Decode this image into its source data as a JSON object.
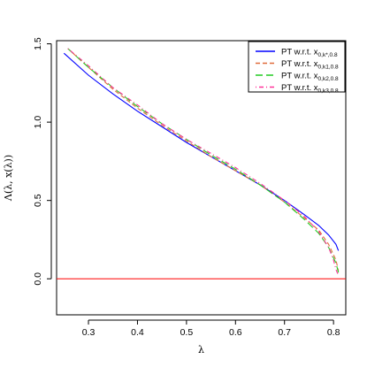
{
  "chart_data": {
    "type": "line",
    "title": "",
    "xlabel": "λ",
    "ylabel": "Λ(λ, x(λ))",
    "xlim": [
      0.235,
      0.825
    ],
    "ylim": [
      -0.23,
      1.52
    ],
    "x_ticks": [
      0.3,
      0.4,
      0.5,
      0.6,
      0.7,
      0.8
    ],
    "x_tick_labels": [
      "0.3",
      "0.4",
      "0.5",
      "0.6",
      "0.7",
      "0.8"
    ],
    "y_ticks": [
      0.0,
      0.5,
      1.0,
      1.5
    ],
    "y_tick_labels": [
      "0.0",
      "0.5",
      "1.0",
      "1.5"
    ],
    "grid": false,
    "legend_position": "top-right",
    "hline": {
      "y": 0.0,
      "color": "#ff0000"
    },
    "series": [
      {
        "name": "PT w.r.t. x",
        "subscript": "0,k*,0.8",
        "color": "#0000ff",
        "dash": "solid",
        "x": [
          0.25,
          0.3,
          0.35,
          0.4,
          0.45,
          0.5,
          0.55,
          0.6,
          0.65,
          0.7,
          0.74,
          0.77,
          0.79,
          0.805,
          0.81
        ],
        "y": [
          1.44,
          1.3,
          1.18,
          1.07,
          0.97,
          0.87,
          0.78,
          0.69,
          0.6,
          0.5,
          0.41,
          0.34,
          0.28,
          0.22,
          0.18
        ]
      },
      {
        "name": "PT w.r.t. x",
        "subscript": "0,k1,0.8",
        "color": "#e06c3c",
        "dash": "dashed",
        "x": [
          0.258,
          0.3,
          0.35,
          0.4,
          0.45,
          0.5,
          0.55,
          0.6,
          0.65,
          0.7,
          0.74,
          0.77,
          0.79,
          0.805,
          0.81
        ],
        "y": [
          1.47,
          1.35,
          1.21,
          1.09,
          0.98,
          0.88,
          0.78,
          0.69,
          0.6,
          0.49,
          0.39,
          0.31,
          0.22,
          0.12,
          0.05
        ]
      },
      {
        "name": "PT w.r.t. x",
        "subscript": "0,k2,0.8",
        "color": "#22cc22",
        "dash": "longdash",
        "x": [
          0.258,
          0.3,
          0.35,
          0.4,
          0.45,
          0.5,
          0.55,
          0.6,
          0.65,
          0.7,
          0.74,
          0.77,
          0.79,
          0.805,
          0.81
        ],
        "y": [
          1.47,
          1.35,
          1.22,
          1.1,
          0.99,
          0.89,
          0.79,
          0.7,
          0.6,
          0.49,
          0.38,
          0.29,
          0.2,
          0.1,
          0.04
        ]
      },
      {
        "name": "PT w.r.t. x",
        "subscript": "0,k3,0.8",
        "color": "#ff3399",
        "dash": "dotdash",
        "x": [
          0.258,
          0.3,
          0.35,
          0.4,
          0.45,
          0.5,
          0.55,
          0.6,
          0.65,
          0.7,
          0.74,
          0.77,
          0.79,
          0.8,
          0.805,
          0.81
        ],
        "y": [
          1.47,
          1.36,
          1.22,
          1.11,
          0.99,
          0.89,
          0.8,
          0.71,
          0.61,
          0.5,
          0.4,
          0.3,
          0.2,
          0.12,
          0.06,
          0.02
        ]
      }
    ]
  }
}
